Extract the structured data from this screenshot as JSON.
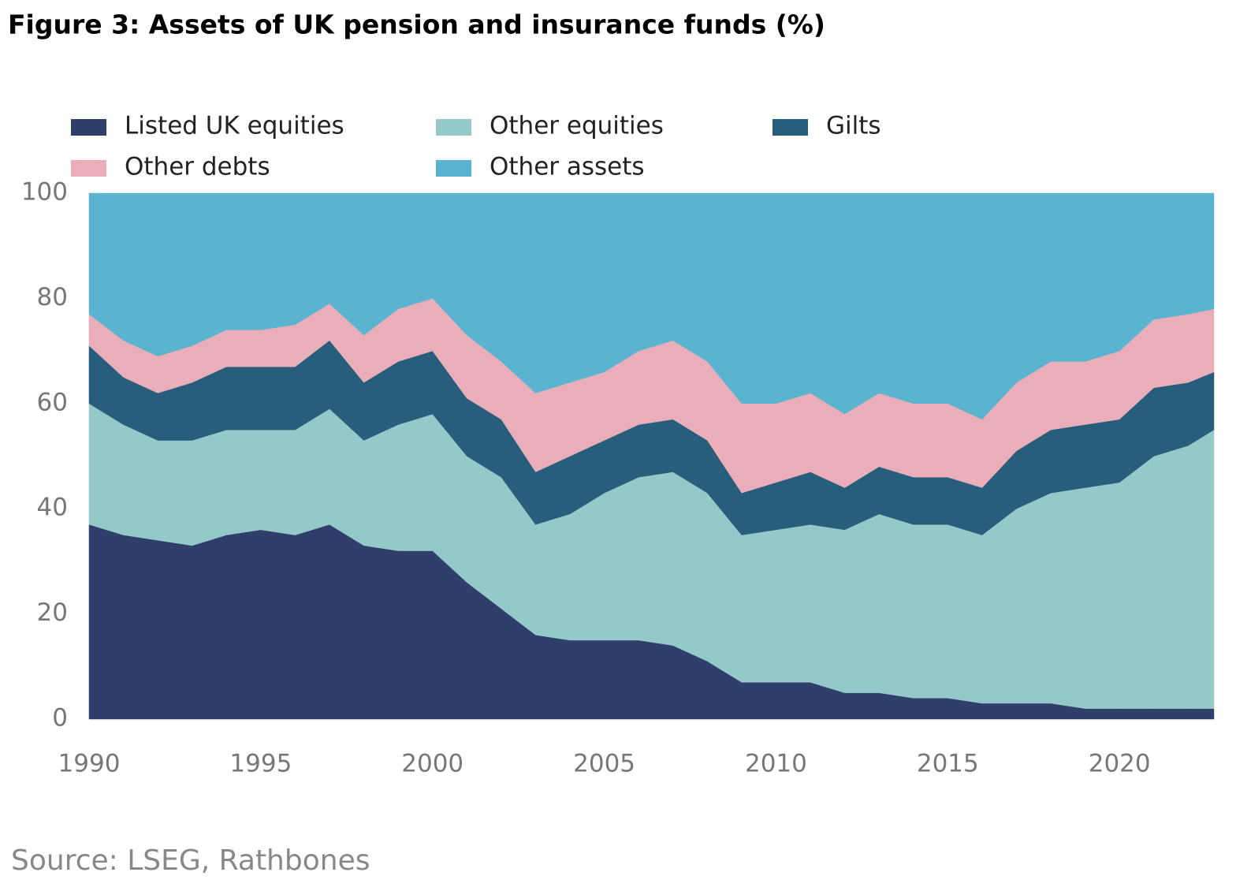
{
  "chart_data": {
    "type": "stacked-area",
    "title": "Figure 3: Assets of UK pension and insurance funds (%)",
    "source": "Source: LSEG, Rathbones",
    "x": [
      1990,
      1991,
      1992,
      1993,
      1994,
      1995,
      1996,
      1997,
      1998,
      1999,
      2000,
      2001,
      2002,
      2003,
      2004,
      2005,
      2006,
      2007,
      2008,
      2009,
      2010,
      2011,
      2012,
      2013,
      2014,
      2015,
      2016,
      2017,
      2018,
      2019,
      2020,
      2021,
      2022,
      2022.75
    ],
    "xlim": [
      1990,
      2022.75
    ],
    "xticks": [
      1990,
      1995,
      2000,
      2005,
      2010,
      2015,
      2020
    ],
    "ylim": [
      0,
      100
    ],
    "yticks": [
      0,
      20,
      40,
      60,
      80,
      100
    ],
    "series": [
      {
        "name": "Listed UK equities",
        "color": "#2f3e6b",
        "values": [
          37,
          35,
          34,
          33,
          35,
          36,
          35,
          37,
          33,
          32,
          32,
          26,
          21,
          16,
          15,
          15,
          15,
          14,
          11,
          7,
          7,
          7,
          5,
          5,
          4,
          4,
          3,
          3,
          3,
          2,
          2,
          2,
          2,
          2
        ]
      },
      {
        "name": "Other equities",
        "color": "#95c8c8",
        "values": [
          23,
          21,
          19,
          20,
          20,
          19,
          20,
          22,
          20,
          24,
          26,
          24,
          25,
          21,
          24,
          28,
          31,
          33,
          32,
          28,
          29,
          30,
          31,
          34,
          33,
          33,
          32,
          37,
          40,
          42,
          43,
          48,
          50,
          53
        ]
      },
      {
        "name": "Gilts",
        "color": "#265e7c",
        "values": [
          11,
          9,
          9,
          11,
          12,
          12,
          12,
          13,
          11,
          12,
          12,
          11,
          11,
          10,
          11,
          10,
          10,
          10,
          10,
          8,
          9,
          10,
          8,
          9,
          9,
          9,
          9,
          11,
          12,
          12,
          12,
          13,
          12,
          11
        ]
      },
      {
        "name": "Other debts",
        "color": "#e9aeb9",
        "values": [
          6,
          7,
          7,
          7,
          7,
          7,
          8,
          7,
          9,
          10,
          10,
          12,
          11,
          15,
          14,
          13,
          14,
          15,
          15,
          17,
          15,
          15,
          14,
          14,
          14,
          14,
          13,
          13,
          13,
          12,
          13,
          13,
          13,
          12
        ]
      },
      {
        "name": "Other assets",
        "color": "#5bb4cf",
        "values": [
          23,
          28,
          31,
          29,
          26,
          26,
          25,
          21,
          27,
          22,
          20,
          27,
          32,
          38,
          36,
          34,
          30,
          28,
          32,
          40,
          40,
          38,
          42,
          38,
          40,
          40,
          43,
          36,
          32,
          32,
          30,
          24,
          23,
          22
        ]
      }
    ]
  }
}
